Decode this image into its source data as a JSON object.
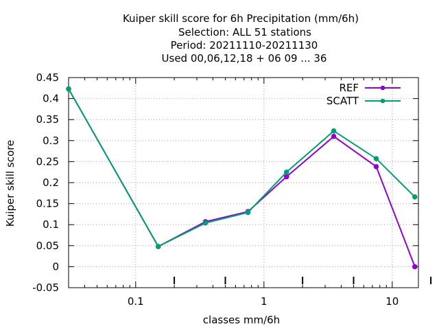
{
  "chart_data": {
    "type": "line",
    "title_lines": [
      "Kuiper skill score  for 6h Precipitation (mm/6h)",
      "Selection: ALL     51 stations",
      "Period: 20211110-20211130",
      "Used  00,06,12,18 + 06 09 ... 36"
    ],
    "xlabel": "classes mm/6h",
    "ylabel": "Kuiper skill score",
    "x_scale": "log",
    "xlim": [
      0.03,
      16
    ],
    "ylim": [
      -0.05,
      0.45
    ],
    "x_ticks": [
      {
        "value": 0.1,
        "label": "0.1"
      },
      {
        "value": 1,
        "label": "1"
      },
      {
        "value": 10,
        "label": "10"
      }
    ],
    "y_ticks": [
      {
        "value": 0.45,
        "label": "0.45"
      },
      {
        "value": 0.4,
        "label": "0.4"
      },
      {
        "value": 0.35,
        "label": "0.35"
      },
      {
        "value": 0.3,
        "label": "0.3"
      },
      {
        "value": 0.25,
        "label": "0.25"
      },
      {
        "value": 0.2,
        "label": "0.2"
      },
      {
        "value": 0.15,
        "label": "0.15"
      },
      {
        "value": 0.1,
        "label": "0.1"
      },
      {
        "value": 0.05,
        "label": "0.05"
      },
      {
        "value": 0,
        "label": "0"
      },
      {
        "value": -0.05,
        "label": "-0.05"
      }
    ],
    "grid": true,
    "legend_position": "top-right",
    "x": [
      0.03,
      0.15,
      0.35,
      0.75,
      1.5,
      3.5,
      7.5,
      15
    ],
    "series": [
      {
        "name": "REF",
        "color": "#9400d3",
        "values": [
          0.423,
          0.048,
          0.107,
          0.131,
          0.214,
          0.31,
          0.238,
          0.0
        ]
      },
      {
        "name": "SCATT",
        "color": "#009e73",
        "values": [
          0.423,
          0.048,
          0.104,
          0.129,
          0.225,
          0.323,
          0.257,
          0.166
        ]
      }
    ]
  }
}
